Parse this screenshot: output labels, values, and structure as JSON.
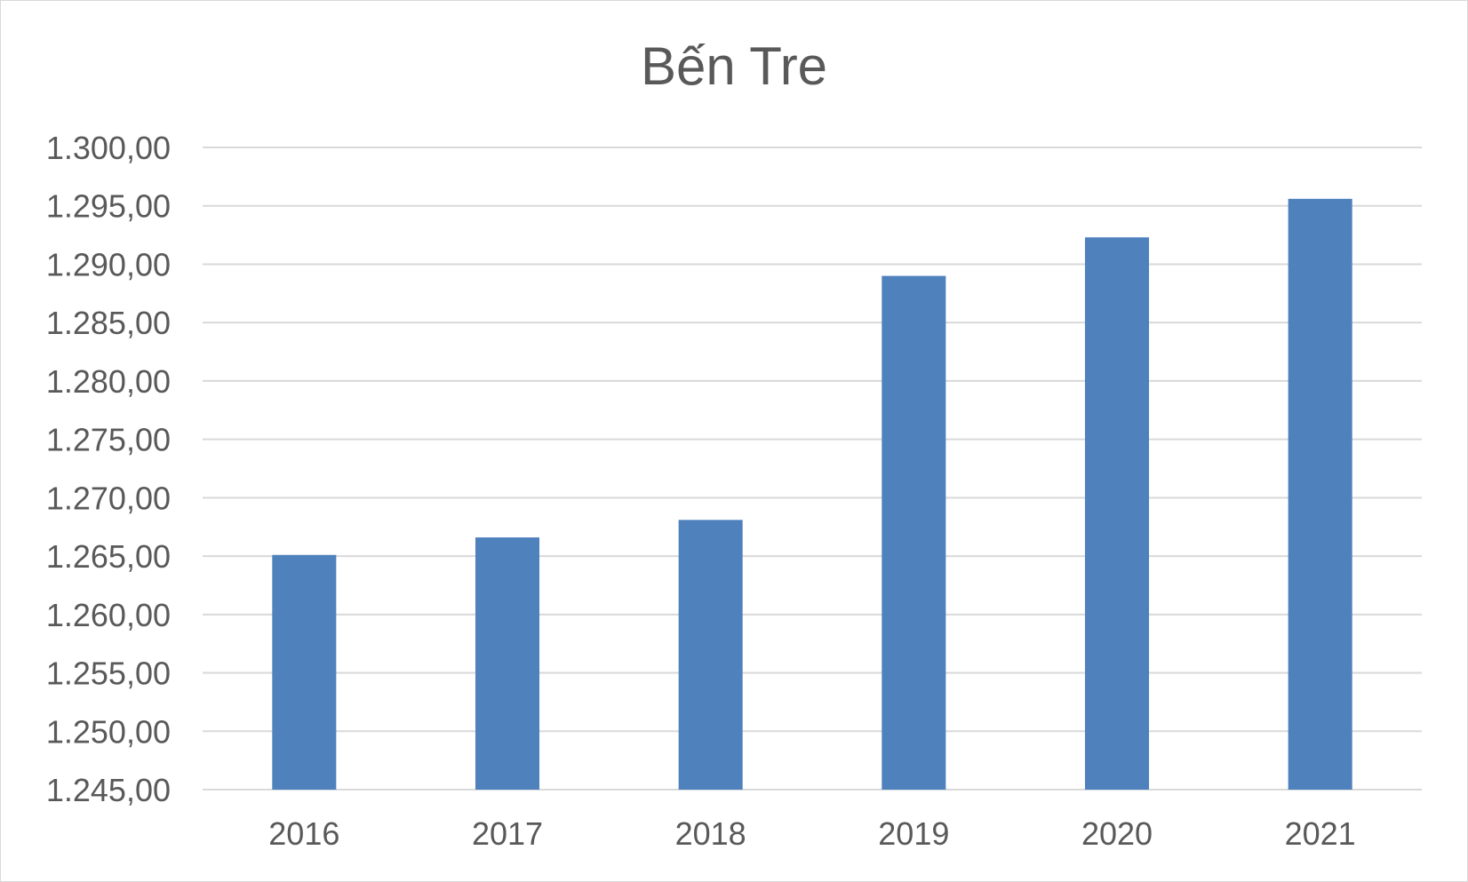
{
  "chart_data": {
    "type": "bar",
    "title": "Bến Tre",
    "xlabel": "",
    "ylabel": "",
    "categories": [
      "2016",
      "2017",
      "2018",
      "2019",
      "2020",
      "2021"
    ],
    "values": [
      1265.1,
      1266.6,
      1268.1,
      1289.0,
      1292.3,
      1295.6
    ],
    "ylim": [
      1245,
      1300
    ],
    "ytick_values": [
      1245,
      1250,
      1255,
      1260,
      1265,
      1270,
      1275,
      1280,
      1285,
      1290,
      1295,
      1300
    ],
    "ytick_labels": [
      "1.245,00",
      "1.250,00",
      "1.255,00",
      "1.260,00",
      "1.265,00",
      "1.270,00",
      "1.275,00",
      "1.280,00",
      "1.285,00",
      "1.290,00",
      "1.295,00",
      "1.300,00"
    ],
    "grid": true,
    "legend": "none",
    "colors": {
      "bar": "#4F81BD",
      "gridline": "#D9D9D9",
      "text": "#595959",
      "border": "#D9D9D9"
    }
  }
}
